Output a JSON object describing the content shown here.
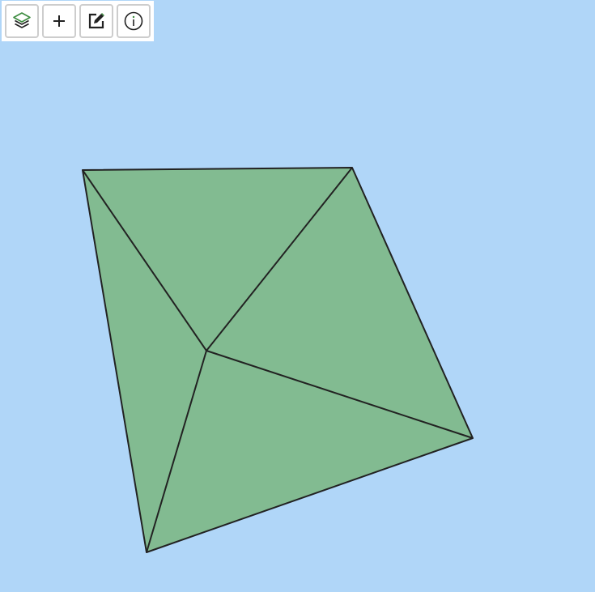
{
  "toolbar": {
    "buttons": [
      {
        "id": "layers",
        "icon": "layers-icon"
      },
      {
        "id": "add",
        "icon": "plus-icon"
      },
      {
        "id": "edit",
        "icon": "edit-icon"
      },
      {
        "id": "info",
        "icon": "info-icon"
      }
    ]
  },
  "map": {
    "water_color": "#b0d6f8",
    "feature_fill": "#82bb91",
    "feature_stroke": "#222222",
    "accent_color": "#3d8c40"
  }
}
